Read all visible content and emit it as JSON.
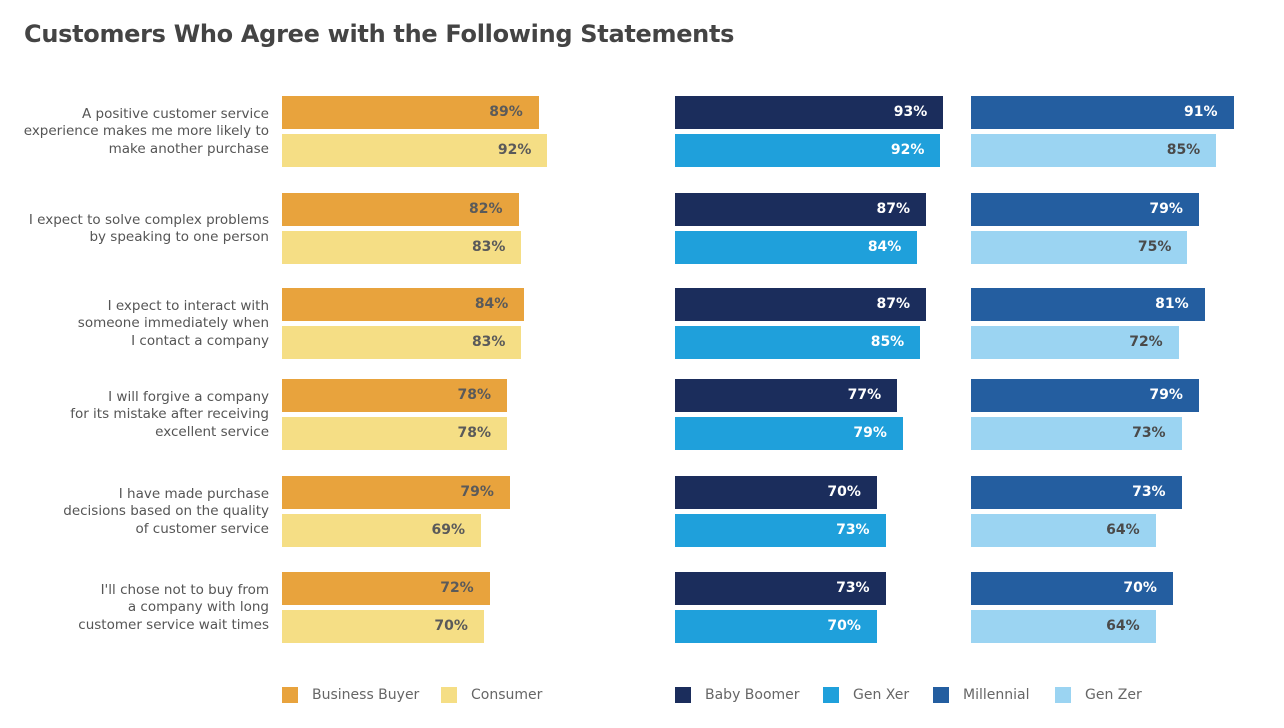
{
  "title": "Customers Who Agree with the Following Statements",
  "chart_data": {
    "type": "bar",
    "orientation": "horizontal",
    "title": "Customers Who Agree with the Following Statements",
    "categories": [
      "A positive customer service experience makes me more likely to make another purchase",
      "I expect to solve complex problems by speaking to one person",
      "I expect to interact with someone immediately when I contact a company",
      "I will forgive a company for its mistake after receiving excellent service",
      "I have made purchase decisions based on the quality of customer service",
      "I'll chose not to buy from a company with long customer service wait times"
    ],
    "category_lines": [
      [
        "A positive customer service",
        "experience makes me more likely to",
        "make another purchase"
      ],
      [
        "I expect to solve complex problems",
        "by speaking to one person"
      ],
      [
        "I expect to interact with",
        "someone immediately when",
        "I contact a company"
      ],
      [
        "I will forgive a company",
        "for its mistake after receiving",
        "excellent service"
      ],
      [
        "I have made purchase",
        "decisions based on the quality",
        "of customer service"
      ],
      [
        "I'll chose not to buy from",
        "a company with long",
        "customer service wait times"
      ]
    ],
    "unit": "%",
    "panels": [
      {
        "series": [
          {
            "name": "Business Buyer",
            "color": "#E8A33D",
            "label_color": "#5a5a5a",
            "values": [
              89,
              82,
              84,
              78,
              79,
              72
            ]
          },
          {
            "name": "Consumer",
            "color": "#F5DE85",
            "label_color": "#5a5a5a",
            "values": [
              92,
              83,
              83,
              78,
              69,
              70
            ]
          }
        ]
      },
      {
        "series": [
          {
            "name": "Baby Boomer",
            "color": "#1B2D5C",
            "label_color": "#ffffff",
            "values": [
              93,
              87,
              87,
              77,
              70,
              73
            ]
          },
          {
            "name": "Gen Xer",
            "color": "#1FA0DB",
            "label_color": "#ffffff",
            "values": [
              92,
              84,
              85,
              79,
              73,
              70
            ]
          }
        ]
      },
      {
        "series": [
          {
            "name": "Millennial",
            "color": "#245EA0",
            "label_color": "#ffffff",
            "values": [
              91,
              79,
              81,
              79,
              73,
              70
            ]
          },
          {
            "name": "Gen Zer",
            "color": "#9BD4F2",
            "label_color": "#4a4a4a",
            "values": [
              85,
              75,
              72,
              73,
              64,
              64
            ]
          }
        ]
      }
    ],
    "legend_position": "bottom",
    "grid": false
  }
}
